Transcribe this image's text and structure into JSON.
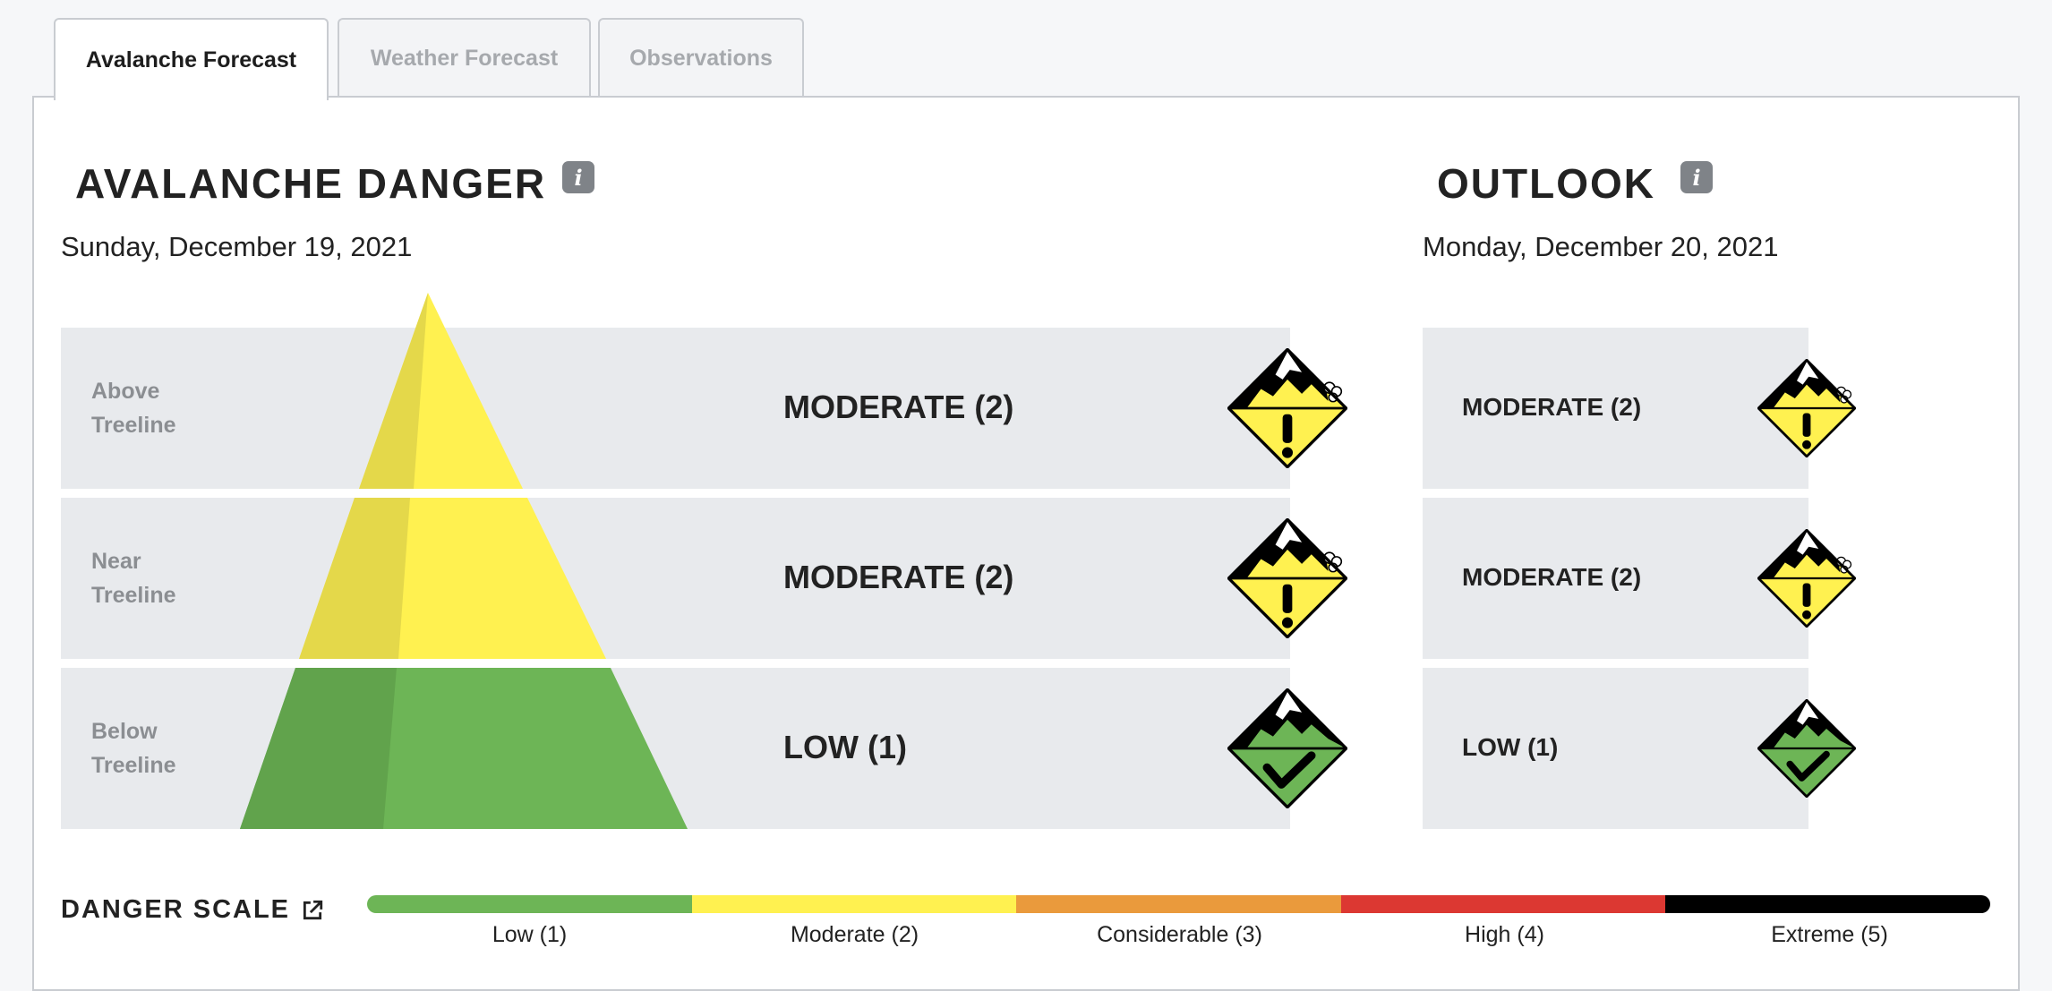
{
  "tabs": [
    {
      "label": "Avalanche Forecast",
      "active": true
    },
    {
      "label": "Weather Forecast",
      "active": false
    },
    {
      "label": "Observations",
      "active": false
    }
  ],
  "danger": {
    "title": "AVALANCHE DANGER",
    "info_icon": "i",
    "date": "Sunday, December 19, 2021",
    "rows": [
      {
        "elevation_line1": "Above",
        "elevation_line2": "Treeline",
        "rating": "MODERATE (2)",
        "level": 2,
        "icon": "moderate-danger-icon"
      },
      {
        "elevation_line1": "Near",
        "elevation_line2": "Treeline",
        "rating": "MODERATE (2)",
        "level": 2,
        "icon": "moderate-danger-icon"
      },
      {
        "elevation_line1": "Below",
        "elevation_line2": "Treeline",
        "rating": "LOW (1)",
        "level": 1,
        "icon": "low-danger-icon"
      }
    ]
  },
  "outlook": {
    "title": "OUTLOOK",
    "info_icon": "i",
    "date": "Monday, December 20, 2021",
    "rows": [
      {
        "rating": "MODERATE (2)",
        "level": 2,
        "icon": "moderate-danger-icon"
      },
      {
        "rating": "MODERATE (2)",
        "level": 2,
        "icon": "moderate-danger-icon"
      },
      {
        "rating": "LOW (1)",
        "level": 1,
        "icon": "low-danger-icon"
      }
    ]
  },
  "scale": {
    "title": "DANGER SCALE",
    "link_icon": "external-link-icon",
    "levels": [
      {
        "label": "Low (1)",
        "color": "#6db556"
      },
      {
        "label": "Moderate (2)",
        "color": "#fff150"
      },
      {
        "label": "Considerable (3)",
        "color": "#ea9a3c"
      },
      {
        "label": "High (4)",
        "color": "#dc3832"
      },
      {
        "label": "Extreme (5)",
        "color": "#000000"
      }
    ]
  },
  "colors": {
    "moderate": "#fff150",
    "moderate_shade": "#e4d84a",
    "low": "#6db556",
    "low_shade": "#61a34c"
  }
}
